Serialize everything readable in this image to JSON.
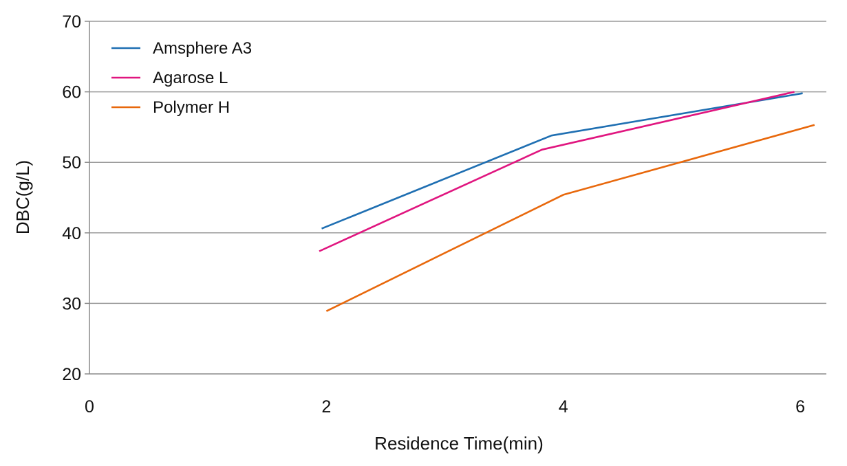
{
  "chart_data": {
    "type": "line",
    "title": "",
    "xlabel": "Residence Time(min)",
    "ylabel": "DBC(g/L)",
    "xlim": [
      0,
      6.22
    ],
    "ylim": [
      20,
      70
    ],
    "xticks": [
      0,
      2,
      4,
      6
    ],
    "yticks": [
      20,
      30,
      40,
      50,
      60,
      70
    ],
    "xtick_labels": [
      "0",
      "2",
      "4",
      "6"
    ],
    "ytick_labels": [
      "20",
      "30",
      "40",
      "50",
      "60",
      "70"
    ],
    "grid": "horizontal",
    "legend_position": "top-left",
    "series": [
      {
        "name": "Amsphere A3",
        "color": "#1f6fb2",
        "points": [
          [
            1.96,
            40.6
          ],
          [
            3.9,
            53.8
          ],
          [
            6.02,
            59.8
          ]
        ]
      },
      {
        "name": "Agarose L",
        "color": "#e0157f",
        "points": [
          [
            1.94,
            37.4
          ],
          [
            3.82,
            51.8
          ],
          [
            5.95,
            60.0
          ]
        ]
      },
      {
        "name": "Polymer H",
        "color": "#e8680c",
        "points": [
          [
            2.0,
            28.9
          ],
          [
            4.0,
            45.4
          ],
          [
            6.12,
            55.3
          ]
        ]
      }
    ]
  }
}
